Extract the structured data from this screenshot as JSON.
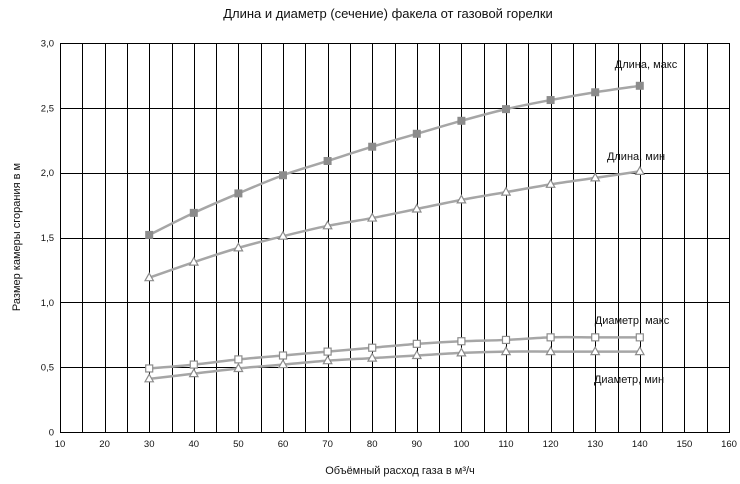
{
  "chart_data": {
    "type": "line",
    "title": "Длина и диаметр (сечение) факела от газовой горелки",
    "xlabel": "Объёмный расход газа в м³/ч",
    "ylabel": "Размер камеры сгорания в м",
    "xlim": [
      10,
      160
    ],
    "ylim": [
      0,
      3.0
    ],
    "x_ticks": [
      "10",
      "20",
      "30",
      "40",
      "50",
      "60",
      "70",
      "80",
      "90",
      "100",
      "110",
      "120",
      "130",
      "140",
      "150",
      "160"
    ],
    "y_ticks": [
      "0",
      "0,5",
      "1,0",
      "1,5",
      "2,0",
      "2,5",
      "3,0"
    ],
    "grid": true,
    "x": [
      30,
      40,
      50,
      60,
      70,
      80,
      90,
      100,
      110,
      120,
      130,
      140
    ],
    "series": [
      {
        "name": "Длина, макс",
        "marker": "filled-square",
        "color": "#a6a6a6",
        "values": [
          1.52,
          1.69,
          1.84,
          1.98,
          2.09,
          2.2,
          2.3,
          2.4,
          2.49,
          2.56,
          2.62,
          2.67
        ]
      },
      {
        "name": "Длина, мин",
        "marker": "open-triangle",
        "color": "#a6a6a6",
        "values": [
          1.19,
          1.31,
          1.42,
          1.51,
          1.59,
          1.65,
          1.72,
          1.79,
          1.85,
          1.91,
          1.96,
          2.01
        ]
      },
      {
        "name": "Диаметр, макс",
        "marker": "open-square",
        "color": "#a6a6a6",
        "values": [
          0.49,
          0.52,
          0.56,
          0.59,
          0.62,
          0.65,
          0.68,
          0.7,
          0.71,
          0.73,
          0.73,
          0.73
        ]
      },
      {
        "name": "Диаметр, мин",
        "marker": "open-triangle",
        "color": "#a6a6a6",
        "values": [
          0.41,
          0.45,
          0.49,
          0.52,
          0.55,
          0.57,
          0.59,
          0.61,
          0.62,
          0.62,
          0.62,
          0.62
        ]
      }
    ]
  }
}
